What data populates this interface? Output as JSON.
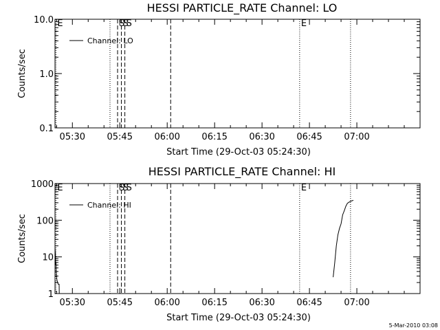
{
  "footer": {
    "stamp": "5-Mar-2010 03:08"
  },
  "chart_data": [
    {
      "type": "line",
      "title": "HESSI PARTICLE_RATE Channel: LO",
      "xlabel": "Start Time (29-Oct-03 05:24:30)",
      "ylabel": "Counts/sec",
      "yscale": "log",
      "ylim": [
        0.1,
        10.0
      ],
      "yticks": [
        0.1,
        1.0,
        10.0
      ],
      "ytick_labels": [
        "0.1",
        "1.0",
        "10.0"
      ],
      "x_unit": "minutes after 05:24:30",
      "xlim": [
        0,
        115.5
      ],
      "xticks": [
        5.5,
        20.5,
        35.5,
        50.5,
        65.5,
        80.5,
        95.5
      ],
      "xtick_labels": [
        "05:30",
        "05:45",
        "06:00",
        "06:15",
        "06:30",
        "06:45",
        "07:00"
      ],
      "legend": {
        "position": "top-left",
        "entries": [
          "Channel: LO"
        ]
      },
      "markers": [
        {
          "x": 0.3,
          "style": "dotted",
          "label": "E"
        },
        {
          "x": 17.4,
          "style": "dotted",
          "label": ""
        },
        {
          "x": 19.8,
          "style": "dashed",
          "label": "S"
        },
        {
          "x": 21.0,
          "style": "dashed",
          "label": "S"
        },
        {
          "x": 22.1,
          "style": "dashed",
          "label": "S"
        },
        {
          "x": 36.6,
          "style": "dashed",
          "label": ""
        },
        {
          "x": 77.4,
          "style": "dotted",
          "label": "E"
        },
        {
          "x": 93.5,
          "style": "dotted",
          "label": ""
        }
      ],
      "series": []
    },
    {
      "type": "line",
      "title": "HESSI PARTICLE_RATE Channel: HI",
      "xlabel": "Start Time (29-Oct-03 05:24:30)",
      "ylabel": "Counts/sec",
      "yscale": "log",
      "ylim": [
        1,
        1000
      ],
      "yticks": [
        1,
        10,
        100,
        1000
      ],
      "ytick_labels": [
        "1",
        "10",
        "100",
        "1000"
      ],
      "x_unit": "minutes after 05:24:30",
      "xlim": [
        0,
        115.5
      ],
      "xticks": [
        5.5,
        20.5,
        35.5,
        50.5,
        65.5,
        80.5,
        95.5
      ],
      "xtick_labels": [
        "05:30",
        "05:45",
        "06:00",
        "06:15",
        "06:30",
        "06:45",
        "07:00"
      ],
      "legend": {
        "position": "top-left",
        "entries": [
          "Channel: HI"
        ]
      },
      "markers": [
        {
          "x": 0.3,
          "style": "dotted",
          "label": "E"
        },
        {
          "x": 17.4,
          "style": "dotted",
          "label": ""
        },
        {
          "x": 19.8,
          "style": "dashed",
          "label": "S"
        },
        {
          "x": 21.0,
          "style": "dashed",
          "label": "S"
        },
        {
          "x": 22.1,
          "style": "dashed",
          "label": "S"
        },
        {
          "x": 36.6,
          "style": "dashed",
          "label": ""
        },
        {
          "x": 77.4,
          "style": "dotted",
          "label": "E"
        },
        {
          "x": 93.5,
          "style": "dotted",
          "label": ""
        }
      ],
      "series": [
        {
          "x": [
            0.0,
            0.1,
            0.2,
            0.25,
            0.3,
            0.4,
            0.5,
            0.6,
            0.7,
            1.0,
            1.3,
            1.35,
            1.6,
            2.0
          ],
          "y": [
            18,
            12,
            8,
            6,
            7,
            4,
            2.8,
            2.4,
            2.2,
            1.8,
            1.8,
            1.0,
            1.0,
            1.0
          ]
        },
        {
          "x": [
            88.0,
            88.5,
            89.0,
            89.5,
            90.0,
            90.5,
            91.0,
            91.5,
            92.0,
            92.5,
            93.0,
            93.3,
            93.6,
            94.0,
            94.4
          ],
          "y": [
            2.8,
            7,
            20,
            40,
            60,
            80,
            140,
            180,
            240,
            290,
            310,
            320,
            330,
            340,
            350
          ]
        }
      ]
    }
  ]
}
